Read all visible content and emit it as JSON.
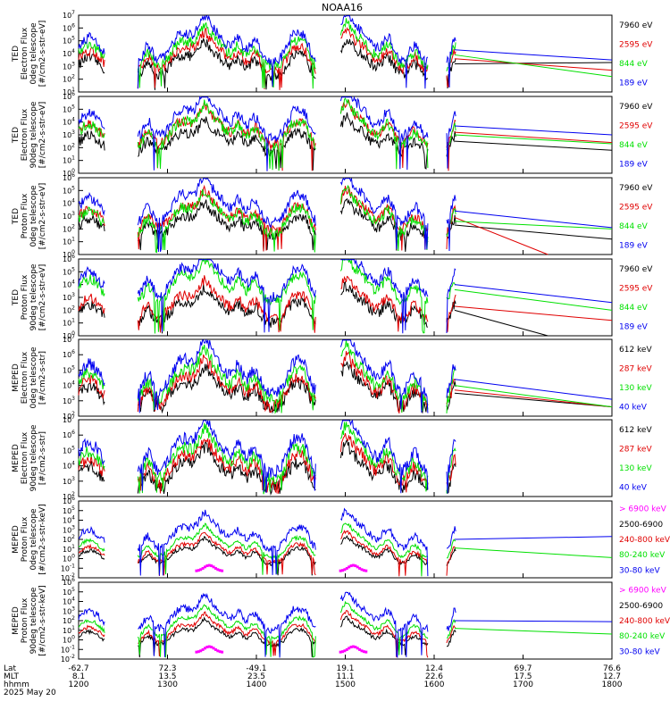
{
  "title": "NOAA16",
  "colors": {
    "black": "#000000",
    "red": "#e00000",
    "green": "#00e000",
    "blue": "#0000f0",
    "magenta": "#ff00ff"
  },
  "chart_data": [
    {
      "type": "line",
      "ylabel": [
        "TED",
        "Electron Flux",
        "0deg telescope",
        "[#/cm2-s-str-eV]"
      ],
      "yscale": "log",
      "ylim_exp": [
        1,
        7
      ],
      "legend": [
        {
          "label": "7960 eV",
          "color": "black"
        },
        {
          "label": "2595 eV",
          "color": "red"
        },
        {
          "label": "844 eV",
          "color": "green"
        },
        {
          "label": "189 eV",
          "color": "blue"
        }
      ],
      "series_levels": {
        "black": 2.2,
        "red": 2.6,
        "green": 2.9,
        "blue": 3.3
      },
      "tail_end": {
        "black": 3.3,
        "red": 2.7,
        "green": 2.2,
        "blue": 3.5
      }
    },
    {
      "type": "line",
      "ylabel": [
        "TED",
        "Electron Flux",
        "90deg telescope",
        "[#/cm2-s-str-eV]"
      ],
      "yscale": "log",
      "ylim_exp": [
        0,
        6
      ],
      "legend": [
        {
          "label": "7960 eV",
          "color": "black"
        },
        {
          "label": "2595 eV",
          "color": "red"
        },
        {
          "label": "844 eV",
          "color": "green"
        },
        {
          "label": "189 eV",
          "color": "blue"
        }
      ],
      "series_levels": {
        "black": 1.5,
        "red": 2.2,
        "green": 2.0,
        "blue": 2.7
      },
      "tail_end": {
        "black": 1.8,
        "red": 2.4,
        "green": 2.3,
        "blue": 3.0
      }
    },
    {
      "type": "line",
      "ylabel": [
        "TED",
        "Proton Flux",
        "0deg telescope",
        "[#/cm2-s-str-eV]"
      ],
      "yscale": "log",
      "ylim_exp": [
        0,
        6
      ],
      "legend": [
        {
          "label": "7960 eV",
          "color": "black"
        },
        {
          "label": "2595 eV",
          "color": "red"
        },
        {
          "label": "844 eV",
          "color": "green"
        },
        {
          "label": "189 eV",
          "color": "blue"
        }
      ],
      "series_levels": {
        "black": 1.3,
        "red": 1.9,
        "green": 1.6,
        "blue": 2.4
      },
      "tail_end": {
        "black": 1.2,
        "red": 0.0,
        "green": 2.0,
        "blue": 2.1
      }
    },
    {
      "type": "line",
      "ylabel": [
        "TED",
        "Proton Flux",
        "90deg telescope",
        "[#/cm2-s-str-eV]"
      ],
      "yscale": "log",
      "ylim_exp": [
        0,
        6
      ],
      "legend": [
        {
          "label": "7960 eV",
          "color": "black"
        },
        {
          "label": "2595 eV",
          "color": "red"
        },
        {
          "label": "844 eV",
          "color": "green"
        },
        {
          "label": "189 eV",
          "color": "blue"
        }
      ],
      "series_levels": {
        "black": 1.0,
        "red": 1.3,
        "green": 2.6,
        "blue": 3.0
      },
      "tail_end": {
        "black": 0.0,
        "red": 1.2,
        "green": 2.0,
        "blue": 2.6
      }
    },
    {
      "type": "line",
      "ylabel": [
        "MEPED",
        "Electron Flux",
        "0deg telescope",
        "[#/cm2-s-str]"
      ],
      "yscale": "log",
      "ylim_exp": [
        2,
        7
      ],
      "legend": [
        {
          "label": "612 keV",
          "color": "black"
        },
        {
          "label": "287 keV",
          "color": "red"
        },
        {
          "label": "130 keV",
          "color": "green"
        },
        {
          "label": "40 keV",
          "color": "blue"
        }
      ],
      "series_levels": {
        "black": 2.5,
        "red": 2.7,
        "green": 3.0,
        "blue": 3.4
      },
      "tail_end": {
        "black": 2.6,
        "red": 2.6,
        "green": 2.6,
        "blue": 3.1
      }
    },
    {
      "type": "line",
      "ylabel": [
        "MEPED",
        "Electron Flux",
        "90deg telescope",
        "[#/cm2-s-str]"
      ],
      "yscale": "log",
      "ylim_exp": [
        2,
        7
      ],
      "legend": [
        {
          "label": "612 keV",
          "color": "black"
        },
        {
          "label": "287 keV",
          "color": "red"
        },
        {
          "label": "130 keV",
          "color": "green"
        },
        {
          "label": "40 keV",
          "color": "blue"
        }
      ],
      "series_levels": {
        "black": 2.5,
        "red": 2.8,
        "green": 3.1,
        "blue": 3.5
      },
      "tail_end": null
    },
    {
      "type": "line",
      "ylabel": [
        "MEPED",
        "Proton Flux",
        "0deg telescope",
        "[#/cm2-s-str-keV]"
      ],
      "yscale": "log",
      "ylim_exp": [
        -2,
        6
      ],
      "legend": [
        {
          "label": "> 6900 keV",
          "color": "magenta"
        },
        {
          "label": "2500-6900",
          "color": "black"
        },
        {
          "label": "240-800 keV",
          "color": "red"
        },
        {
          "label": "80-240 keV",
          "color": "green"
        },
        {
          "label": "30-80 keV",
          "color": "blue"
        }
      ],
      "series_levels": {
        "black": -0.6,
        "red": -0.4,
        "green": 0.1,
        "blue": 1.0
      },
      "tail_end": {
        "black": null,
        "red": null,
        "green": 0.1,
        "blue": 2.3
      }
    },
    {
      "type": "line",
      "ylabel": [
        "MEPED",
        "Proton Flux",
        "90deg telescope",
        "[#/cm2-s-str-keV]"
      ],
      "yscale": "log",
      "ylim_exp": [
        -2,
        6
      ],
      "legend": [
        {
          "label": "> 6900 keV",
          "color": "magenta"
        },
        {
          "label": "2500-6900",
          "color": "black"
        },
        {
          "label": "240-800 keV",
          "color": "red"
        },
        {
          "label": "80-240 keV",
          "color": "green"
        },
        {
          "label": "30-80 keV",
          "color": "blue"
        }
      ],
      "series_levels": {
        "black": -0.6,
        "red": -0.3,
        "green": 0.2,
        "blue": 1.0
      },
      "tail_end": {
        "black": null,
        "red": null,
        "green": 0.6,
        "blue": 1.9
      }
    }
  ],
  "x_axis": {
    "row_labels": [
      "Lat",
      "MLT",
      "hhmm"
    ],
    "ticks": [
      {
        "lat": "-62.7",
        "mlt": "8.1",
        "hhmm": "1200"
      },
      {
        "lat": "72.3",
        "mlt": "13.5",
        "hhmm": "1300"
      },
      {
        "lat": "-49.1",
        "mlt": "23.5",
        "hhmm": "1400"
      },
      {
        "lat": "19.1",
        "mlt": "11.1",
        "hhmm": "1500"
      },
      {
        "lat": "12.4",
        "mlt": "22.6",
        "hhmm": "1600"
      },
      {
        "lat": "69.7",
        "mlt": "17.5",
        "hhmm": "1700"
      },
      {
        "lat": "76.6",
        "mlt": "12.7",
        "hhmm": "1800"
      }
    ],
    "date": "2025 May 20"
  }
}
